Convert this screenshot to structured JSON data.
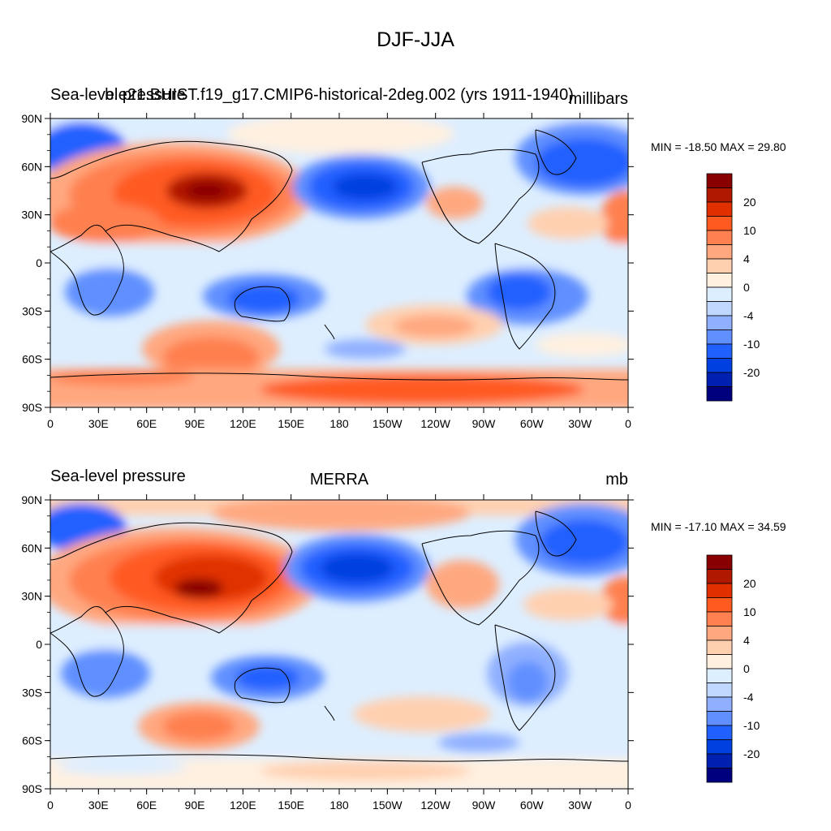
{
  "figure": {
    "title": "DJF-JJA"
  },
  "palette": [
    "#00007f",
    "#0020b0",
    "#0040e0",
    "#2060ff",
    "#6090ff",
    "#90b0ff",
    "#c0d8ff",
    "#ddeeff",
    "#fff0e0",
    "#ffd0b0",
    "#ffa880",
    "#ff8050",
    "#ff5a20",
    "#e03000",
    "#b01800",
    "#880000"
  ],
  "colorbar_labels": [
    "20",
    "10",
    "4",
    "0",
    "-4",
    "-10",
    "-20"
  ],
  "panels": [
    {
      "left_title": "Sea-level pressure",
      "center_title": "b.e21.BHIST.f19_g17.CMIP6-historical-2deg.002 (yrs 1911-1940)",
      "units": "millibars",
      "minmax": "MIN = -18.50 MAX =  29.80",
      "lat_labels": [
        "90N",
        "60N",
        "30N",
        "0",
        "30S",
        "60S",
        "90S"
      ],
      "lon_labels": [
        "0",
        "30E",
        "60E",
        "90E",
        "120E",
        "150E",
        "180",
        "150W",
        "120W",
        "90W",
        "60W",
        "30W",
        "0"
      ],
      "min": -18.5,
      "max": 29.8
    },
    {
      "left_title": "Sea-level pressure",
      "center_title": "MERRA",
      "units": "mb",
      "minmax": "MIN = -17.10 MAX =  34.59",
      "lat_labels": [
        "90N",
        "60N",
        "30N",
        "0",
        "30S",
        "60S",
        "90S"
      ],
      "lon_labels": [
        "0",
        "30E",
        "60E",
        "90E",
        "120E",
        "150E",
        "180",
        "150W",
        "120W",
        "90W",
        "60W",
        "30W",
        "0"
      ],
      "min": -17.1,
      "max": 34.59
    }
  ]
}
